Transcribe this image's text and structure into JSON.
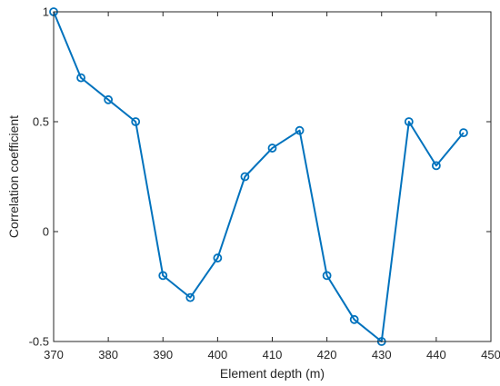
{
  "chart_data": {
    "type": "line",
    "xlabel": "Element depth (m)",
    "ylabel": "Correlation coefficient",
    "xlim": [
      370,
      450
    ],
    "ylim": [
      -0.5,
      1
    ],
    "xticks": [
      370,
      380,
      390,
      400,
      410,
      420,
      430,
      440,
      450
    ],
    "xtick_labels": [
      "370",
      "380",
      "390",
      "400",
      "410",
      "420",
      "430",
      "440",
      "450"
    ],
    "yticks": [
      -0.5,
      0,
      0.5,
      1
    ],
    "ytick_labels": [
      "-0.5",
      "0",
      "0.5",
      "1"
    ],
    "grid": false,
    "series": [
      {
        "color": "#0072BD",
        "marker": "circle",
        "x": [
          370,
          375,
          380,
          385,
          390,
          395,
          400,
          405,
          410,
          415,
          420,
          425,
          430,
          435,
          440,
          445
        ],
        "y": [
          1.0,
          0.7,
          0.6,
          0.5,
          -0.2,
          -0.3,
          -0.12,
          0.25,
          0.38,
          0.46,
          -0.2,
          -0.4,
          -0.5,
          0.5,
          0.3,
          0.45
        ]
      }
    ]
  }
}
